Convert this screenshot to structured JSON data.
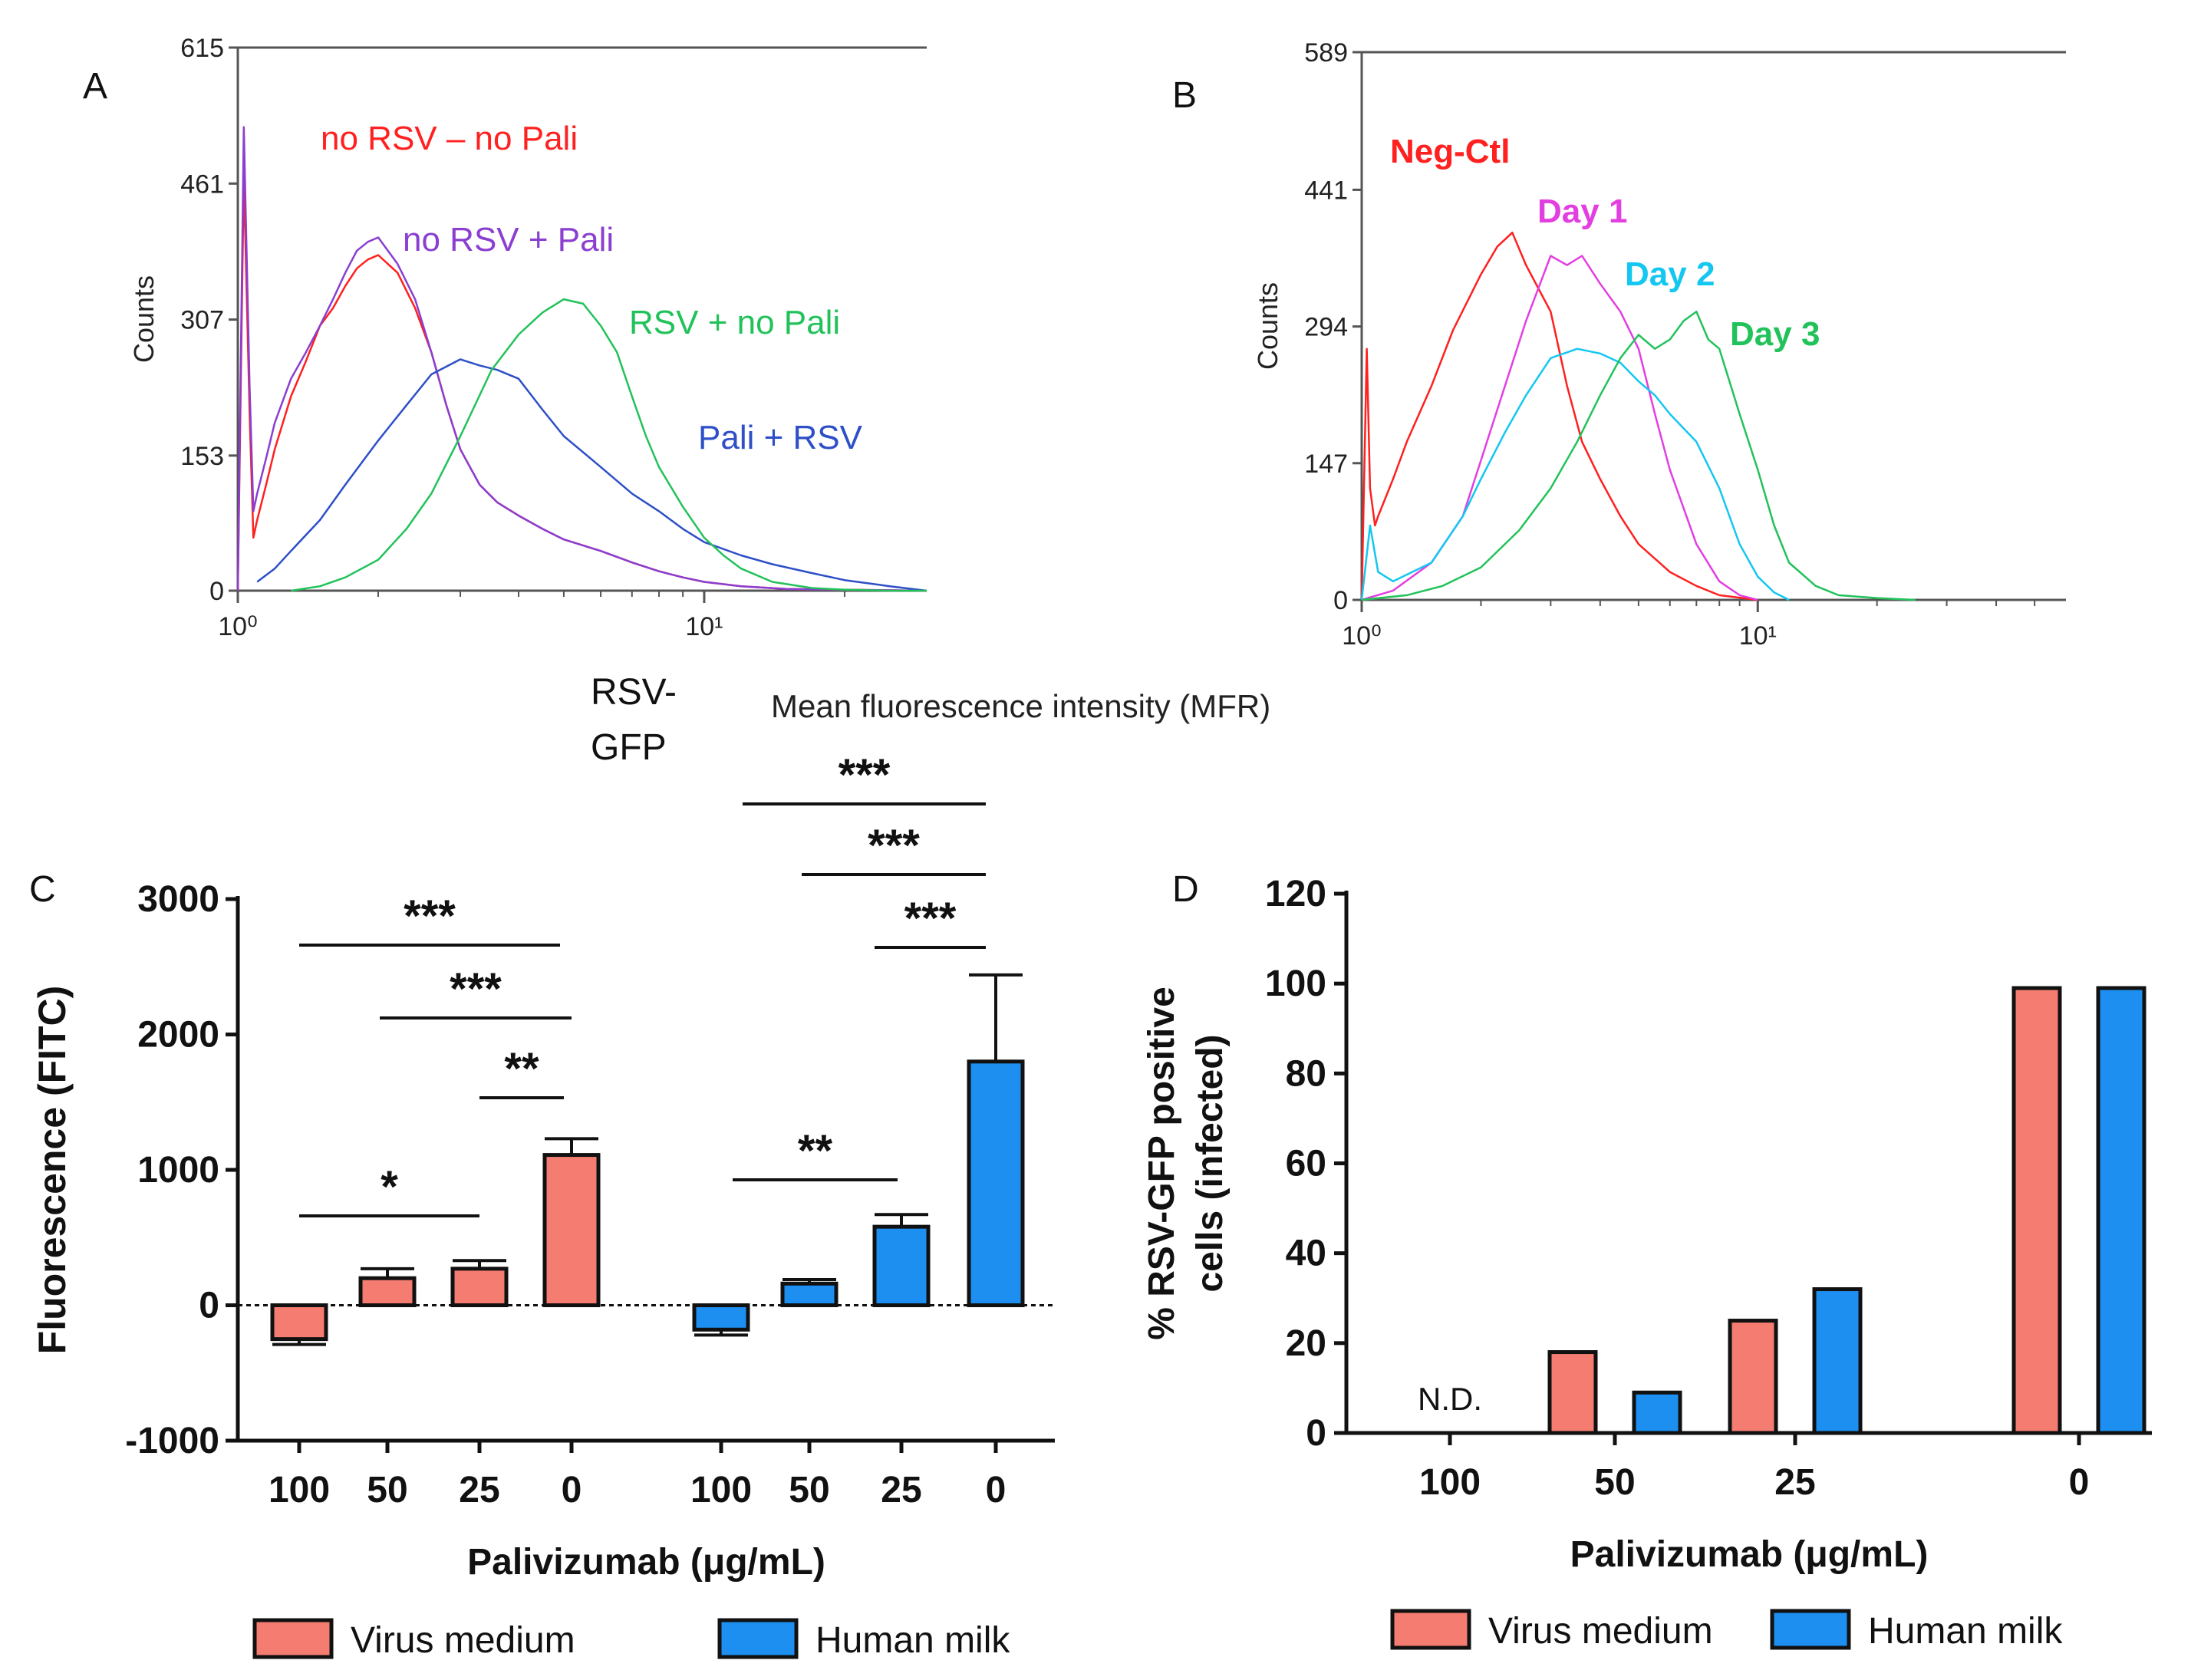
{
  "chart_data": [
    {
      "panel": "A",
      "type": "line",
      "subtype": "flow-cytometry-histogram",
      "x_scale": "log",
      "xlim": [
        1,
        30
      ],
      "x_tick_labels": [
        "10⁰",
        "10¹"
      ],
      "x_ticks": [
        1,
        10
      ],
      "ylim": [
        0,
        615
      ],
      "y_ticks": [
        0,
        153,
        307,
        461,
        615
      ],
      "ylabel": "Counts",
      "xlabel": "RSV-GFP",
      "series": [
        {
          "name": "no RSV – no Pali",
          "color": "#ff2020",
          "x": [
            1.0,
            1.03,
            1.06,
            1.08,
            1.1,
            1.15,
            1.2,
            1.3,
            1.4,
            1.5,
            1.6,
            1.7,
            1.8,
            1.9,
            2.0,
            2.2,
            2.4,
            2.6,
            2.8,
            3.0,
            3.3,
            3.6,
            4.0,
            4.5,
            5.0,
            6.0,
            7.0,
            8.0,
            9.0,
            10.0,
            12.0,
            15.0,
            20.0,
            30.0
          ],
          "y": [
            0,
            470,
            200,
            60,
            80,
            120,
            160,
            220,
            260,
            300,
            320,
            345,
            365,
            375,
            380,
            360,
            320,
            270,
            210,
            160,
            120,
            100,
            85,
            70,
            58,
            45,
            32,
            22,
            15,
            10,
            5,
            2,
            1,
            0
          ]
        },
        {
          "name": "no RSV + Pali",
          "color": "#8a3fd1",
          "x": [
            1.0,
            1.03,
            1.06,
            1.08,
            1.1,
            1.15,
            1.2,
            1.3,
            1.4,
            1.5,
            1.6,
            1.7,
            1.8,
            1.9,
            2.0,
            2.2,
            2.4,
            2.6,
            2.8,
            3.0,
            3.3,
            3.6,
            4.0,
            4.5,
            5.0,
            6.0,
            7.0,
            8.0,
            9.0,
            10.0,
            12.0,
            15.0,
            20.0,
            30.0
          ],
          "y": [
            0,
            525,
            230,
            90,
            110,
            150,
            190,
            240,
            270,
            300,
            330,
            360,
            385,
            395,
            400,
            370,
            330,
            270,
            210,
            160,
            120,
            100,
            85,
            70,
            58,
            45,
            32,
            22,
            15,
            10,
            5,
            2,
            1,
            0
          ]
        },
        {
          "name": "Pali + RSV",
          "color": "#2e4fc7",
          "x": [
            1.1,
            1.2,
            1.3,
            1.5,
            1.7,
            2.0,
            2.3,
            2.6,
            3.0,
            3.3,
            3.6,
            4.0,
            4.5,
            5.0,
            6.0,
            7.0,
            8.0,
            9.0,
            10.0,
            12.0,
            14.0,
            17.0,
            20.0,
            25.0,
            30.0
          ],
          "y": [
            10,
            25,
            45,
            80,
            120,
            170,
            210,
            245,
            262,
            255,
            250,
            240,
            205,
            175,
            140,
            110,
            90,
            70,
            55,
            40,
            30,
            20,
            12,
            5,
            0
          ]
        },
        {
          "name": "RSV + no Pali",
          "color": "#22c25a",
          "x": [
            1.3,
            1.5,
            1.7,
            2.0,
            2.3,
            2.6,
            3.0,
            3.5,
            4.0,
            4.5,
            5.0,
            5.5,
            6.0,
            6.5,
            7.0,
            7.5,
            8.0,
            9.0,
            10.0,
            11.0,
            12.0,
            14.0,
            17.0,
            20.0,
            25.0,
            30.0
          ],
          "y": [
            0,
            5,
            15,
            35,
            70,
            110,
            175,
            250,
            290,
            315,
            330,
            325,
            300,
            270,
            220,
            175,
            140,
            95,
            60,
            40,
            25,
            10,
            3,
            1,
            0,
            0
          ]
        }
      ]
    },
    {
      "panel": "B",
      "type": "line",
      "subtype": "flow-cytometry-histogram",
      "x_scale": "log",
      "xlim": [
        1,
        60
      ],
      "x_tick_labels": [
        "10⁰",
        "10¹"
      ],
      "x_ticks": [
        1,
        10
      ],
      "ylim": [
        0,
        589
      ],
      "y_ticks": [
        0,
        147,
        294,
        441,
        589
      ],
      "ylabel": "Counts",
      "series": [
        {
          "name": "Neg-Ctl",
          "color": "#ff2020",
          "x": [
            1.0,
            1.03,
            1.05,
            1.08,
            1.1,
            1.2,
            1.3,
            1.5,
            1.7,
            2.0,
            2.2,
            2.4,
            2.6,
            3.0,
            3.3,
            3.6,
            4.0,
            4.5,
            5.0,
            6.0,
            7.0,
            8.0,
            10.0
          ],
          "y": [
            0,
            270,
            120,
            80,
            90,
            130,
            170,
            230,
            290,
            350,
            380,
            395,
            360,
            310,
            230,
            170,
            130,
            90,
            60,
            30,
            15,
            5,
            0
          ]
        },
        {
          "name": "Day 1",
          "color": "#e23fe0",
          "x": [
            1.0,
            1.2,
            1.5,
            1.8,
            2.0,
            2.3,
            2.6,
            3.0,
            3.3,
            3.6,
            4.0,
            4.5,
            5.0,
            5.5,
            6.0,
            7.0,
            8.0,
            9.0,
            10.0
          ],
          "y": [
            0,
            10,
            40,
            90,
            150,
            230,
            300,
            370,
            360,
            370,
            340,
            310,
            270,
            200,
            140,
            60,
            20,
            5,
            0
          ]
        },
        {
          "name": "Day 2",
          "color": "#14c7f0",
          "x": [
            1.0,
            1.05,
            1.1,
            1.2,
            1.5,
            1.8,
            2.0,
            2.3,
            2.6,
            3.0,
            3.5,
            4.0,
            4.5,
            5.0,
            5.5,
            6.0,
            7.0,
            8.0,
            9.0,
            10.0,
            11.0,
            12.0
          ],
          "y": [
            0,
            80,
            30,
            20,
            40,
            90,
            130,
            180,
            220,
            260,
            270,
            265,
            255,
            235,
            220,
            200,
            170,
            120,
            60,
            25,
            8,
            0
          ]
        },
        {
          "name": "Day 3",
          "color": "#22c25a",
          "x": [
            1.0,
            1.3,
            1.6,
            2.0,
            2.5,
            3.0,
            3.5,
            4.0,
            4.5,
            5.0,
            5.5,
            6.0,
            6.5,
            7.0,
            7.5,
            8.0,
            9.0,
            10.0,
            11.0,
            12.0,
            14.0,
            16.0,
            20.0,
            25.0
          ],
          "y": [
            0,
            5,
            15,
            35,
            75,
            120,
            170,
            220,
            260,
            285,
            270,
            280,
            300,
            310,
            280,
            270,
            200,
            140,
            80,
            40,
            15,
            5,
            2,
            0
          ]
        }
      ]
    },
    {
      "panel": "C",
      "type": "bar",
      "ylabel": "Fluorescence (FITC)",
      "xlabel": "Palivizumab (μg/mL)",
      "ylim": [
        -1000,
        3000
      ],
      "y_ticks": [
        -1000,
        0,
        1000,
        2000,
        3000
      ],
      "categories": [
        "100",
        "50",
        "25",
        "0"
      ],
      "series": [
        {
          "name": "Virus medium",
          "color": "#f47c70",
          "values": [
            -250,
            200,
            270,
            1110
          ],
          "errors": [
            40,
            70,
            60,
            120
          ]
        },
        {
          "name": "Human milk",
          "color": "#1c8ff0",
          "values": [
            -180,
            160,
            580,
            1800
          ],
          "errors": [
            40,
            30,
            90,
            640
          ]
        }
      ],
      "significance": [
        {
          "series": 0,
          "from": 0,
          "to": 3,
          "label": "***"
        },
        {
          "series": 0,
          "from": 1,
          "to": 3,
          "label": "***"
        },
        {
          "series": 0,
          "from": 2,
          "to": 3,
          "label": "**"
        },
        {
          "series": 0,
          "from": 0,
          "to": 2,
          "label": "*"
        },
        {
          "series": 1,
          "from": 0,
          "to": 3,
          "label": "***"
        },
        {
          "series": 1,
          "from": 1,
          "to": 3,
          "label": "***"
        },
        {
          "series": 1,
          "from": 2,
          "to": 3,
          "label": "***"
        },
        {
          "series": 1,
          "from": 0,
          "to": 2,
          "label": "**"
        }
      ]
    },
    {
      "panel": "D",
      "type": "bar",
      "ylabel": "% RSV-GFP positive cells (infected)",
      "ylabel_lines": [
        "% RSV-GFP positive",
        "cells (infected)"
      ],
      "xlabel": "Palivizumab (μg/mL)",
      "ylim": [
        0,
        120
      ],
      "y_ticks": [
        0,
        20,
        40,
        60,
        80,
        100,
        120
      ],
      "categories": [
        "100",
        "50",
        "25",
        "0"
      ],
      "series": [
        {
          "name": "Virus medium",
          "color": "#f47c70",
          "values": [
            null,
            18,
            25,
            99
          ]
        },
        {
          "name": "Human milk",
          "color": "#1c8ff0",
          "values": [
            null,
            9,
            32,
            99
          ]
        }
      ],
      "annotations": [
        {
          "category": 0,
          "text": "N.D."
        }
      ]
    }
  ],
  "labels": {
    "panel_a": "A",
    "panel_b": "B",
    "panel_c": "C",
    "panel_d": "D",
    "shared_xlabel": "Mean fluorescence intensity (MFR)",
    "a_xlabel_line1": "RSV-",
    "a_xlabel_line2": "GFP"
  }
}
